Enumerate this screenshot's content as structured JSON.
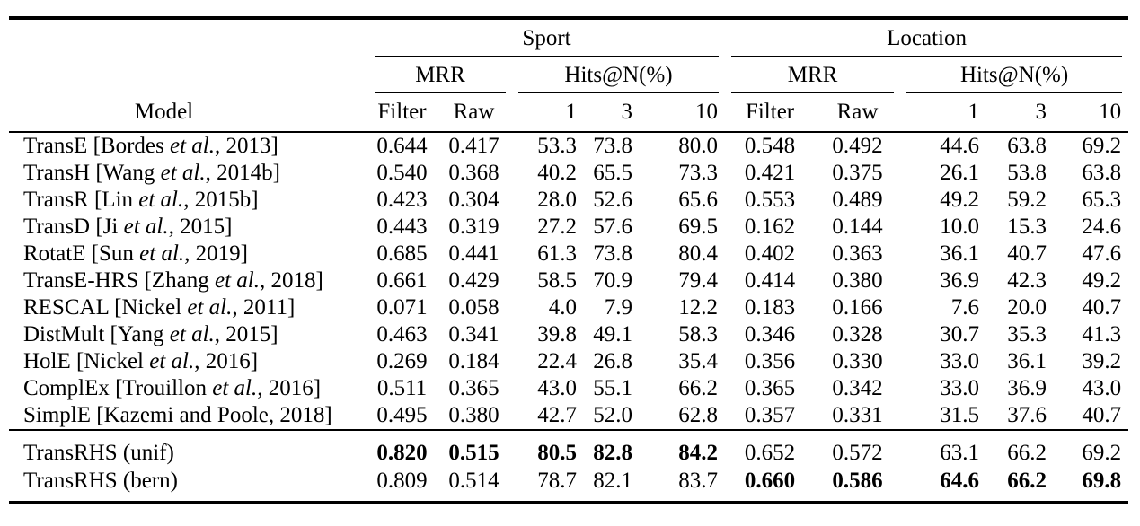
{
  "colors": {
    "text": "#000000",
    "background": "#ffffff",
    "rule": "#000000"
  },
  "table": {
    "groups": [
      "Sport",
      "Location"
    ],
    "metrics": {
      "mrr": "MRR",
      "hits": "Hits@N(%)"
    },
    "columns": {
      "model": "Model",
      "filter": "Filter",
      "raw": "Raw",
      "h1": "1",
      "h3": "3",
      "h10": "10"
    },
    "rows": [
      {
        "model_prefix": "TransE [Bordes ",
        "model_italic": "et al.",
        "model_suffix": ", 2013]",
        "bold": null,
        "values": [
          "0.644",
          "0.417",
          "53.3",
          "73.8",
          "80.0",
          "0.548",
          "0.492",
          "44.6",
          "63.8",
          "69.2"
        ]
      },
      {
        "model_prefix": "TransH [Wang ",
        "model_italic": "et al.",
        "model_suffix": ", 2014b]",
        "bold": null,
        "values": [
          "0.540",
          "0.368",
          "40.2",
          "65.5",
          "73.3",
          "0.421",
          "0.375",
          "26.1",
          "53.8",
          "63.8"
        ]
      },
      {
        "model_prefix": "TransR [Lin ",
        "model_italic": "et al.",
        "model_suffix": ", 2015b]",
        "bold": null,
        "values": [
          "0.423",
          "0.304",
          "28.0",
          "52.6",
          "65.6",
          "0.553",
          "0.489",
          "49.2",
          "59.2",
          "65.3"
        ]
      },
      {
        "model_prefix": "TransD [Ji ",
        "model_italic": "et al.",
        "model_suffix": ", 2015]",
        "bold": null,
        "values": [
          "0.443",
          "0.319",
          "27.2",
          "57.6",
          "69.5",
          "0.162",
          "0.144",
          "10.0",
          "15.3",
          "24.6"
        ]
      },
      {
        "model_prefix": "RotatE [Sun ",
        "model_italic": "et al.",
        "model_suffix": ", 2019]",
        "bold": null,
        "values": [
          "0.685",
          "0.441",
          "61.3",
          "73.8",
          "80.4",
          "0.402",
          "0.363",
          "36.1",
          "40.7",
          "47.6"
        ]
      },
      {
        "model_prefix": "TransE-HRS [Zhang ",
        "model_italic": "et al.",
        "model_suffix": ", 2018]",
        "bold": null,
        "values": [
          "0.661",
          "0.429",
          "58.5",
          "70.9",
          "79.4",
          "0.414",
          "0.380",
          "36.9",
          "42.3",
          "49.2"
        ]
      },
      {
        "model_prefix": "RESCAL [Nickel ",
        "model_italic": "et al.",
        "model_suffix": ", 2011]",
        "bold": null,
        "values": [
          "0.071",
          "0.058",
          "4.0",
          "7.9",
          "12.2",
          "0.183",
          "0.166",
          "7.6",
          "20.0",
          "40.7"
        ]
      },
      {
        "model_prefix": "DistMult [Yang ",
        "model_italic": "et al.",
        "model_suffix": ", 2015]",
        "bold": null,
        "values": [
          "0.463",
          "0.341",
          "39.8",
          "49.1",
          "58.3",
          "0.346",
          "0.328",
          "30.7",
          "35.3",
          "41.3"
        ]
      },
      {
        "model_prefix": "HolE [Nickel ",
        "model_italic": "et al.",
        "model_suffix": ", 2016]",
        "bold": null,
        "values": [
          "0.269",
          "0.184",
          "22.4",
          "26.8",
          "35.4",
          "0.356",
          "0.330",
          "33.0",
          "36.1",
          "39.2"
        ]
      },
      {
        "model_prefix": "ComplEx [Trouillon ",
        "model_italic": "et al.",
        "model_suffix": ", 2016]",
        "bold": null,
        "values": [
          "0.511",
          "0.365",
          "43.0",
          "55.1",
          "66.2",
          "0.365",
          "0.342",
          "33.0",
          "36.9",
          "43.0"
        ]
      },
      {
        "model_prefix": "SimplE [Kazemi and Poole, 2018]",
        "model_italic": "",
        "model_suffix": "",
        "bold": null,
        "values": [
          "0.495",
          "0.380",
          "42.7",
          "52.0",
          "62.8",
          "0.357",
          "0.331",
          "31.5",
          "37.6",
          "40.7"
        ]
      },
      {
        "model_prefix": "TransRHS (unif)",
        "model_italic": "",
        "model_suffix": "",
        "bold": "sport",
        "values": [
          "0.820",
          "0.515",
          "80.5",
          "82.8",
          "84.2",
          "0.652",
          "0.572",
          "63.1",
          "66.2",
          "69.2"
        ]
      },
      {
        "model_prefix": "TransRHS (bern)",
        "model_italic": "",
        "model_suffix": "",
        "bold": "location",
        "values": [
          "0.809",
          "0.514",
          "78.7",
          "82.1",
          "83.7",
          "0.660",
          "0.586",
          "64.6",
          "66.2",
          "69.8"
        ]
      }
    ]
  }
}
